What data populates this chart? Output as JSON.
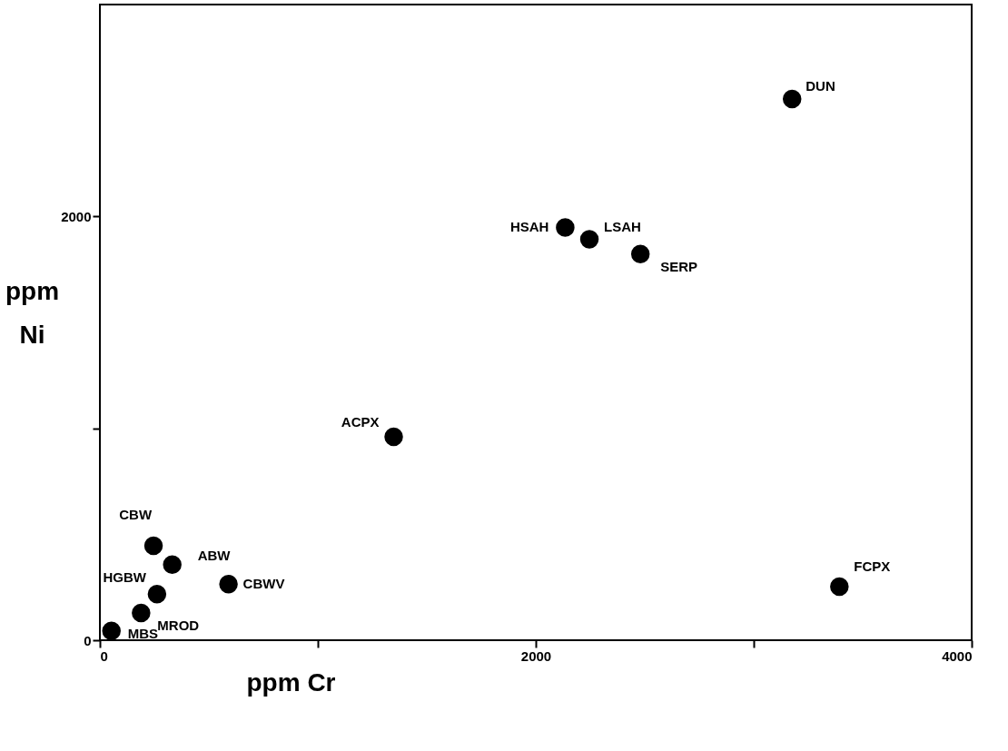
{
  "chart_data": {
    "type": "scatter",
    "xlabel": "ppm Cr",
    "ylabel": "ppm Ni",
    "x": [
      3176,
      2135,
      2246,
      2480,
      1348,
      246,
      332,
      590,
      262,
      189,
      53,
      3393
    ],
    "values": [
      2554,
      1948,
      1892,
      1823,
      960,
      446,
      357,
      265,
      217,
      129,
      44,
      253
    ],
    "color": "#000000",
    "marker": "circle",
    "grid": false,
    "xlim": [
      0,
      4000
    ],
    "xticks": [
      0,
      {
        "value": 1000,
        "label": null
      },
      2000,
      {
        "value": 3000,
        "label": null
      },
      4000
    ],
    "ylim": [
      0,
      3000
    ],
    "yticks": [
      0,
      {
        "value": 1000,
        "label": null
      },
      2000
    ],
    "annotations": [
      {
        "text": "DUN",
        "x": 3176,
        "y": 2554
      },
      {
        "text": "HSAH",
        "x": 2135,
        "y": 1948
      },
      {
        "text": "LSAH",
        "x": 2246,
        "y": 1892
      },
      {
        "text": "SERP",
        "x": 2480,
        "y": 1823
      },
      {
        "text": "ACPX",
        "x": 1348,
        "y": 960
      },
      {
        "text": "CBW",
        "x": 246,
        "y": 446
      },
      {
        "text": "ABW",
        "x": 332,
        "y": 357
      },
      {
        "text": "CBWV",
        "x": 590,
        "y": 265
      },
      {
        "text": "HGBW",
        "x": 262,
        "y": 217
      },
      {
        "text": "MROD",
        "x": 189,
        "y": 129
      },
      {
        "text": "MBS",
        "x": 53,
        "y": 44
      },
      {
        "text": "FCPX",
        "x": 3393,
        "y": 253
      }
    ]
  }
}
